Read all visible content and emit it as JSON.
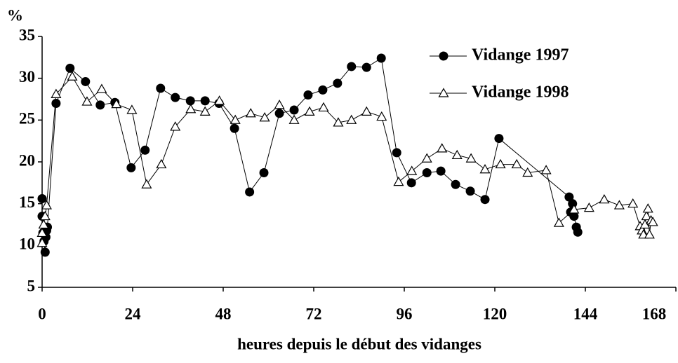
{
  "chart_data": {
    "type": "line",
    "y_label": "%",
    "x_label": "heures depuis le début des vidanges",
    "xlim": [
      0,
      168
    ],
    "xticks": [
      0,
      24,
      48,
      72,
      96,
      120,
      144,
      168
    ],
    "ylim": [
      5,
      35
    ],
    "yticks": [
      5,
      10,
      15,
      20,
      25,
      30,
      35
    ],
    "grid": false,
    "legend": "upper right",
    "series": [
      {
        "name": "Vidange 1997",
        "color": "#000000",
        "marker": "circle",
        "x": [
          0,
          0,
          0.2,
          0.5,
          0.8,
          1,
          1.2,
          1.4,
          3.7,
          7.4,
          11.5,
          15.4,
          19.3,
          23.6,
          27.3,
          31.4,
          35.3,
          39.3,
          43.2,
          46.9,
          51,
          55,
          58.8,
          62.9,
          66.8,
          70.5,
          74.4,
          78.3,
          82,
          86,
          89.9,
          94,
          97.9,
          102,
          105.7,
          109.6,
          113.5,
          117.4,
          121.1,
          139.7,
          140.1,
          140.6,
          141,
          141.6,
          142
        ],
        "values": [
          15.6,
          13.5,
          11.5,
          10.5,
          9.2,
          11,
          11.8,
          12.2,
          27,
          31.2,
          29.6,
          26.8,
          27.1,
          19.3,
          21.4,
          28.8,
          27.7,
          27.3,
          27.3,
          27,
          24,
          16.4,
          18.7,
          25.8,
          26.2,
          28,
          28.6,
          29.4,
          31.4,
          31.3,
          32.4,
          21.1,
          17.5,
          18.7,
          18.9,
          17.3,
          16.5,
          15.5,
          22.8,
          15.8,
          14,
          15,
          13.5,
          12.2,
          11.6
        ]
      },
      {
        "name": "Vidange 1998",
        "color": "#000000",
        "marker": "triangle",
        "x": [
          0,
          0,
          0.4,
          0.8,
          1.2,
          3.7,
          8,
          11.9,
          15.8,
          19.7,
          23.8,
          27.7,
          31.6,
          35.3,
          39.4,
          43.2,
          47,
          51.2,
          55.3,
          59,
          62.9,
          66.8,
          70.9,
          74.6,
          78.5,
          82,
          86,
          90,
          94.5,
          98,
          102,
          106,
          110,
          113.7,
          117.4,
          121.5,
          125.8,
          128.7,
          133.6,
          137,
          141,
          145,
          149,
          153,
          156.6,
          158.5,
          159,
          159.4,
          159.8,
          160.2,
          160.6,
          161,
          161.4,
          161.9
        ],
        "values": [
          10.3,
          11.5,
          12.5,
          13.5,
          14.8,
          28.1,
          30.2,
          27.2,
          28.7,
          26.9,
          26.2,
          17.3,
          19.7,
          24.2,
          26.3,
          26,
          27.3,
          25,
          25.8,
          25.3,
          26.8,
          25,
          26,
          26.5,
          24.7,
          25,
          26,
          25.4,
          17.6,
          18.9,
          20.4,
          21.6,
          20.8,
          20.4,
          19.1,
          19.7,
          19.7,
          18.7,
          19,
          12.7,
          14.3,
          14.5,
          15.5,
          14.8,
          15,
          12.3,
          11.8,
          11.3,
          12.5,
          13.5,
          14.4,
          11.3,
          13,
          12.8
        ]
      }
    ]
  }
}
